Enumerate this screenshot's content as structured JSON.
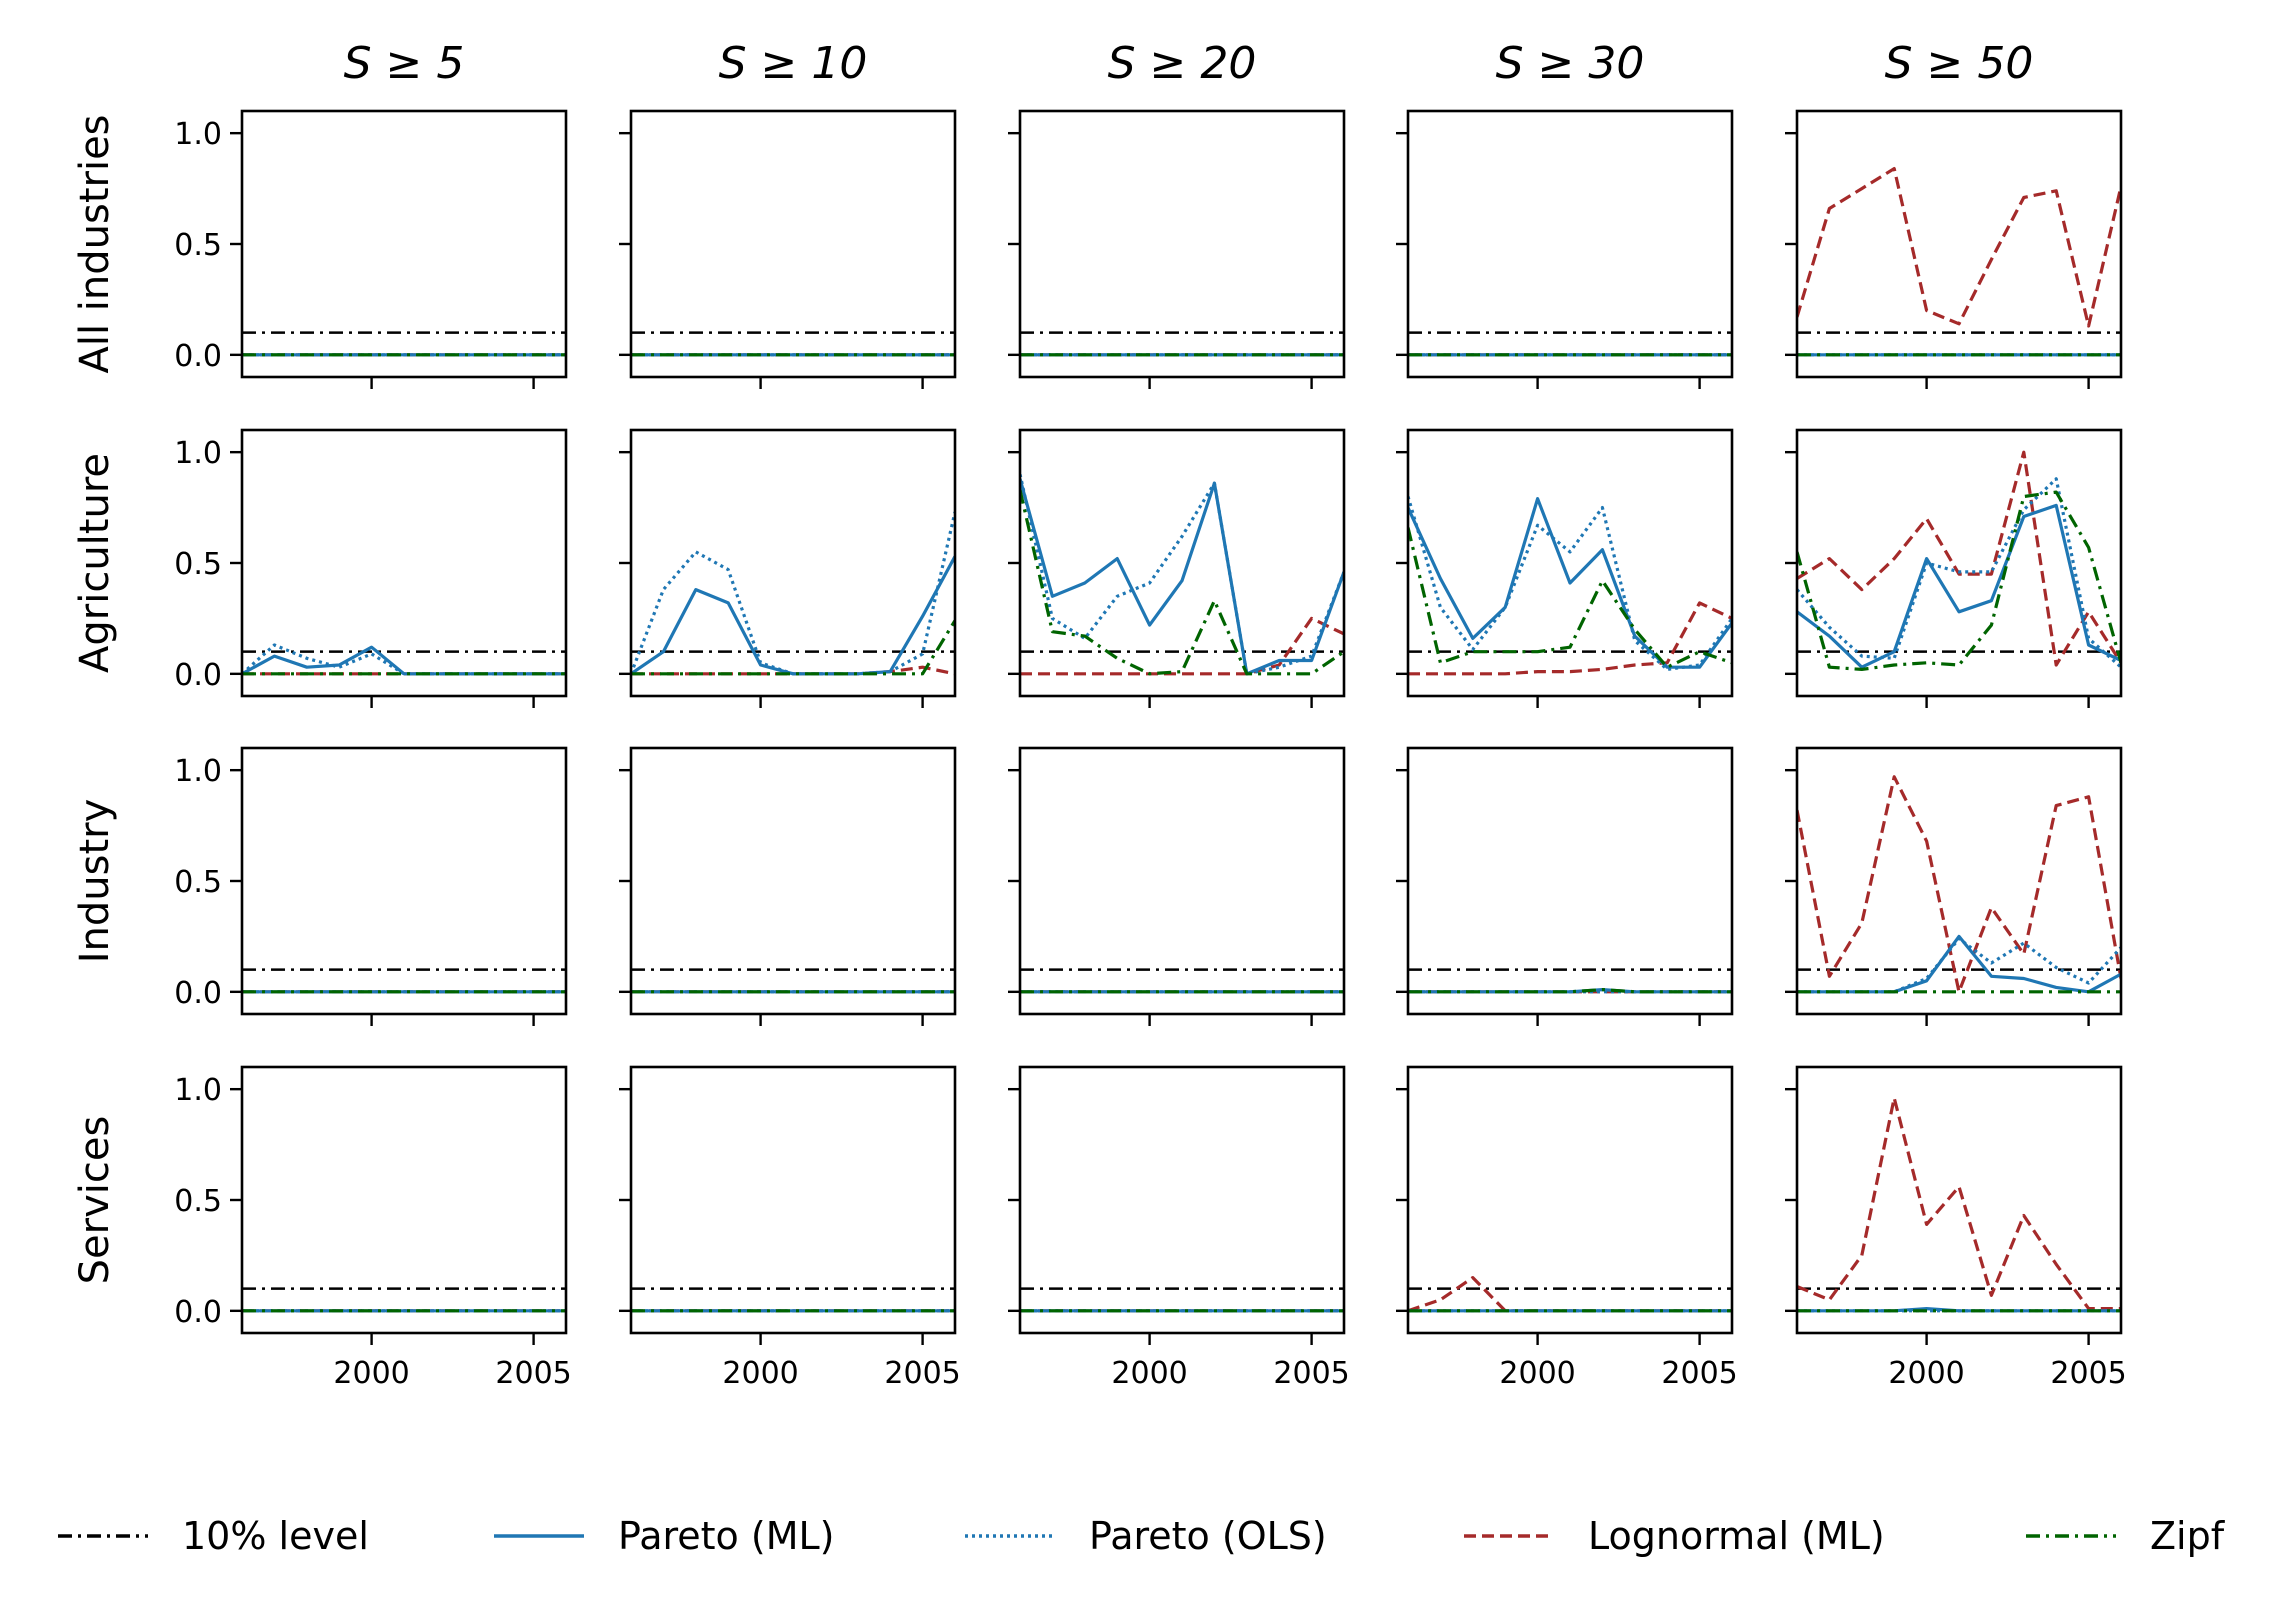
{
  "chart_data": {
    "type": "line",
    "col_titles": [
      "S ≥ 5",
      "S ≥ 10",
      "S ≥ 20",
      "S ≥ 30",
      "S ≥ 50"
    ],
    "row_labels": [
      "All industries",
      "Agriculture",
      "Industry",
      "Services"
    ],
    "ylim": [
      -0.1,
      1.1
    ],
    "xlim": [
      1996,
      2006
    ],
    "y_ticks": [
      0.0,
      0.5,
      1.0
    ],
    "y_tick_labels": [
      "0.0",
      "0.5",
      "1.0"
    ],
    "x_ticks": [
      2000,
      2005
    ],
    "x_tick_labels": [
      "2000",
      "2005"
    ],
    "x": [
      1996,
      1997,
      1998,
      1999,
      2000,
      2001,
      2002,
      2003,
      2004,
      2005,
      2006
    ],
    "reference_level": 0.1,
    "series_styles": [
      {
        "key": "level",
        "name": "10% level",
        "color": "#000000",
        "dash": "14 6 3 6"
      },
      {
        "key": "pareto_ml",
        "name": "Pareto (ML)",
        "color": "#1f77b4",
        "dash": ""
      },
      {
        "key": "pareto_ols",
        "name": "Pareto (OLS)",
        "color": "#1f77b4",
        "dash": "3 4"
      },
      {
        "key": "lognormal_ml",
        "name": "Lognormal (ML)",
        "color": "#a52a2a",
        "dash": "12 6"
      },
      {
        "key": "zipf",
        "name": "Zipf",
        "color": "#006400",
        "dash": "14 6 3 6"
      }
    ],
    "panels": [
      [
        {
          "pareto_ml": [
            0,
            0,
            0,
            0,
            0,
            0,
            0,
            0,
            0,
            0,
            0
          ],
          "pareto_ols": [
            0,
            0,
            0,
            0,
            0,
            0,
            0,
            0,
            0,
            0,
            0
          ],
          "lognormal_ml": [
            0,
            0,
            0,
            0,
            0,
            0,
            0,
            0,
            0,
            0,
            0
          ],
          "zipf": [
            0,
            0,
            0,
            0,
            0,
            0,
            0,
            0,
            0,
            0,
            0
          ]
        },
        {
          "pareto_ml": [
            0,
            0,
            0,
            0,
            0,
            0,
            0,
            0,
            0,
            0,
            0
          ],
          "pareto_ols": [
            0,
            0,
            0,
            0,
            0,
            0,
            0,
            0,
            0,
            0,
            0
          ],
          "lognormal_ml": [
            0,
            0,
            0,
            0,
            0,
            0,
            0,
            0,
            0,
            0,
            0
          ],
          "zipf": [
            0,
            0,
            0,
            0,
            0,
            0,
            0,
            0,
            0,
            0,
            0
          ]
        },
        {
          "pareto_ml": [
            0,
            0,
            0,
            0,
            0,
            0,
            0,
            0,
            0,
            0,
            0
          ],
          "pareto_ols": [
            0,
            0,
            0,
            0,
            0,
            0,
            0,
            0,
            0,
            0,
            0
          ],
          "lognormal_ml": [
            0,
            0,
            0,
            0,
            0,
            0,
            0,
            0,
            0,
            0,
            0
          ],
          "zipf": [
            0,
            0,
            0,
            0,
            0,
            0,
            0,
            0,
            0,
            0,
            0
          ]
        },
        {
          "pareto_ml": [
            0,
            0,
            0,
            0,
            0,
            0,
            0,
            0,
            0,
            0,
            0
          ],
          "pareto_ols": [
            0,
            0,
            0,
            0,
            0,
            0,
            0,
            0,
            0,
            0,
            0
          ],
          "lognormal_ml": [
            0,
            0,
            0,
            0,
            0,
            0,
            0,
            0,
            0,
            0,
            0
          ],
          "zipf": [
            0,
            0,
            0,
            0,
            0,
            0,
            0,
            0,
            0,
            0,
            0
          ]
        },
        {
          "pareto_ml": [
            0,
            0,
            0,
            0,
            0,
            0,
            0,
            0,
            0,
            0,
            0
          ],
          "pareto_ols": [
            0,
            0,
            0,
            0,
            0,
            0,
            0,
            0,
            0,
            0,
            0
          ],
          "lognormal_ml": [
            0.17,
            0.66,
            0.75,
            0.84,
            0.2,
            0.14,
            0.43,
            0.71,
            0.74,
            0.13,
            0.76
          ],
          "zipf": [
            0,
            0,
            0,
            0,
            0,
            0,
            0,
            0,
            0,
            0,
            0
          ]
        }
      ],
      [
        {
          "pareto_ml": [
            0,
            0.08,
            0.03,
            0.04,
            0.12,
            0,
            0,
            0,
            0,
            0,
            0
          ],
          "pareto_ols": [
            0,
            0.13,
            0.07,
            0.03,
            0.09,
            0,
            0,
            0,
            0,
            0,
            0
          ],
          "lognormal_ml": [
            0,
            0,
            0,
            0,
            0,
            0,
            0,
            0,
            0,
            0,
            0
          ],
          "zipf": [
            0,
            0,
            0,
            0,
            0,
            0,
            0,
            0,
            0,
            0,
            0
          ]
        },
        {
          "pareto_ml": [
            0,
            0.1,
            0.38,
            0.32,
            0.04,
            0,
            0,
            0,
            0.01,
            0.26,
            0.53
          ],
          "pareto_ols": [
            0,
            0.38,
            0.55,
            0.47,
            0.05,
            0,
            0,
            0,
            0.01,
            0.09,
            0.73
          ],
          "lognormal_ml": [
            0,
            0,
            0,
            0,
            0,
            0,
            0,
            0,
            0.01,
            0.03,
            0
          ],
          "zipf": [
            0,
            0,
            0,
            0,
            0,
            0,
            0,
            0,
            0,
            0,
            0.24
          ]
        },
        {
          "pareto_ml": [
            0.88,
            0.35,
            0.41,
            0.52,
            0.22,
            0.42,
            0.86,
            0,
            0.06,
            0.06,
            0.46
          ],
          "pareto_ols": [
            0.9,
            0.25,
            0.16,
            0.35,
            0.41,
            0.62,
            0.86,
            0,
            0.03,
            0.08,
            0.46
          ],
          "lognormal_ml": [
            0,
            0,
            0,
            0,
            0,
            0,
            0,
            0,
            0.04,
            0.25,
            0.18
          ],
          "zipf": [
            0.83,
            0.19,
            0.17,
            0.07,
            0,
            0.01,
            0.33,
            0,
            0,
            0,
            0.1
          ]
        },
        {
          "pareto_ml": [
            0.75,
            0.43,
            0.16,
            0.3,
            0.79,
            0.41,
            0.56,
            0.17,
            0.03,
            0.03,
            0.23
          ],
          "pareto_ols": [
            0.8,
            0.3,
            0.11,
            0.3,
            0.67,
            0.55,
            0.75,
            0.15,
            0.02,
            0.04,
            0.25
          ],
          "lognormal_ml": [
            0,
            0,
            0,
            0,
            0.01,
            0.01,
            0.02,
            0.04,
            0.05,
            0.32,
            0.25
          ],
          "zipf": [
            0.66,
            0.05,
            0.1,
            0.1,
            0.1,
            0.12,
            0.42,
            0.2,
            0.03,
            0.1,
            0.05
          ]
        },
        {
          "pareto_ml": [
            0.28,
            0.17,
            0.03,
            0.1,
            0.52,
            0.28,
            0.33,
            0.71,
            0.76,
            0.13,
            0.06
          ],
          "pareto_ols": [
            0.38,
            0.21,
            0.08,
            0.07,
            0.5,
            0.46,
            0.46,
            0.74,
            0.88,
            0.16,
            0.03
          ],
          "lognormal_ml": [
            0.43,
            0.52,
            0.38,
            0.52,
            0.7,
            0.45,
            0.45,
            1.0,
            0.04,
            0.28,
            0.05
          ],
          "zipf": [
            0.55,
            0.03,
            0.02,
            0.04,
            0.05,
            0.04,
            0.22,
            0.8,
            0.82,
            0.57,
            0.05
          ]
        }
      ],
      [
        {
          "pareto_ml": [
            0,
            0,
            0,
            0,
            0,
            0,
            0,
            0,
            0,
            0,
            0
          ],
          "pareto_ols": [
            0,
            0,
            0,
            0,
            0,
            0,
            0,
            0,
            0,
            0,
            0
          ],
          "lognormal_ml": [
            0,
            0,
            0,
            0,
            0,
            0,
            0,
            0,
            0,
            0,
            0
          ],
          "zipf": [
            0,
            0,
            0,
            0,
            0,
            0,
            0,
            0,
            0,
            0,
            0
          ]
        },
        {
          "pareto_ml": [
            0,
            0,
            0,
            0,
            0,
            0,
            0,
            0,
            0,
            0,
            0
          ],
          "pareto_ols": [
            0,
            0,
            0,
            0,
            0,
            0,
            0,
            0,
            0,
            0,
            0
          ],
          "lognormal_ml": [
            0,
            0,
            0,
            0,
            0,
            0,
            0,
            0,
            0,
            0,
            0
          ],
          "zipf": [
            0,
            0,
            0,
            0,
            0,
            0,
            0,
            0,
            0,
            0,
            0
          ]
        },
        {
          "pareto_ml": [
            0,
            0,
            0,
            0,
            0,
            0,
            0,
            0,
            0,
            0,
            0
          ],
          "pareto_ols": [
            0,
            0,
            0,
            0,
            0,
            0,
            0,
            0,
            0,
            0,
            0
          ],
          "lognormal_ml": [
            0,
            0,
            0,
            0,
            0,
            0,
            0,
            0,
            0,
            0,
            0
          ],
          "zipf": [
            0,
            0,
            0,
            0,
            0,
            0,
            0,
            0,
            0,
            0,
            0
          ]
        },
        {
          "pareto_ml": [
            0,
            0,
            0,
            0,
            0,
            0,
            0.01,
            0,
            0,
            0,
            0
          ],
          "pareto_ols": [
            0,
            0,
            0,
            0,
            0,
            0,
            0,
            0,
            0,
            0,
            0
          ],
          "lognormal_ml": [
            0,
            0,
            0,
            0,
            0,
            0,
            0,
            0,
            0,
            0,
            0
          ],
          "zipf": [
            0,
            0,
            0,
            0,
            0,
            0,
            0.01,
            0,
            0,
            0,
            0
          ]
        },
        {
          "pareto_ml": [
            0,
            0,
            0,
            0,
            0.05,
            0.25,
            0.07,
            0.06,
            0.02,
            0,
            0.08
          ],
          "pareto_ols": [
            0,
            0,
            0,
            0,
            0.06,
            0.24,
            0.13,
            0.22,
            0.11,
            0.04,
            0.2
          ],
          "lognormal_ml": [
            0.82,
            0.07,
            0.31,
            0.97,
            0.68,
            0,
            0.38,
            0.17,
            0.84,
            0.88,
            0.06
          ],
          "zipf": [
            0,
            0,
            0,
            0,
            0,
            0,
            0,
            0,
            0,
            0,
            0
          ]
        }
      ],
      [
        {
          "pareto_ml": [
            0,
            0,
            0,
            0,
            0,
            0,
            0,
            0,
            0,
            0,
            0
          ],
          "pareto_ols": [
            0,
            0,
            0,
            0,
            0,
            0,
            0,
            0,
            0,
            0,
            0
          ],
          "lognormal_ml": [
            0,
            0,
            0,
            0,
            0,
            0,
            0,
            0,
            0,
            0,
            0
          ],
          "zipf": [
            0,
            0,
            0,
            0,
            0,
            0,
            0,
            0,
            0,
            0,
            0
          ]
        },
        {
          "pareto_ml": [
            0,
            0,
            0,
            0,
            0,
            0,
            0,
            0,
            0,
            0,
            0
          ],
          "pareto_ols": [
            0,
            0,
            0,
            0,
            0,
            0,
            0,
            0,
            0,
            0,
            0
          ],
          "lognormal_ml": [
            0,
            0,
            0,
            0,
            0,
            0,
            0,
            0,
            0,
            0,
            0
          ],
          "zipf": [
            0,
            0,
            0,
            0,
            0,
            0,
            0,
            0,
            0,
            0,
            0
          ]
        },
        {
          "pareto_ml": [
            0,
            0,
            0,
            0,
            0,
            0,
            0,
            0,
            0,
            0,
            0
          ],
          "pareto_ols": [
            0,
            0,
            0,
            0,
            0,
            0,
            0,
            0,
            0,
            0,
            0
          ],
          "lognormal_ml": [
            0,
            0,
            0,
            0,
            0,
            0,
            0,
            0,
            0,
            0,
            0
          ],
          "zipf": [
            0,
            0,
            0,
            0,
            0,
            0,
            0,
            0,
            0,
            0,
            0
          ]
        },
        {
          "pareto_ml": [
            0,
            0,
            0,
            0,
            0,
            0,
            0,
            0,
            0,
            0,
            0
          ],
          "pareto_ols": [
            0,
            0,
            0,
            0,
            0,
            0,
            0,
            0,
            0,
            0,
            0
          ],
          "lognormal_ml": [
            0,
            0.05,
            0.15,
            0,
            0,
            0,
            0,
            0,
            0,
            0,
            0
          ],
          "zipf": [
            0,
            0,
            0,
            0,
            0,
            0,
            0,
            0,
            0,
            0,
            0
          ]
        },
        {
          "pareto_ml": [
            0,
            0,
            0,
            0,
            0.01,
            0,
            0,
            0,
            0,
            0,
            0
          ],
          "pareto_ols": [
            0,
            0,
            0,
            0,
            0,
            0,
            0,
            0,
            0,
            0,
            0
          ],
          "lognormal_ml": [
            0.11,
            0.05,
            0.25,
            0.96,
            0.39,
            0.56,
            0.07,
            0.43,
            0.21,
            0.01,
            0.01
          ],
          "zipf": [
            0,
            0,
            0,
            0,
            0,
            0,
            0,
            0,
            0,
            0,
            0
          ]
        }
      ]
    ]
  }
}
